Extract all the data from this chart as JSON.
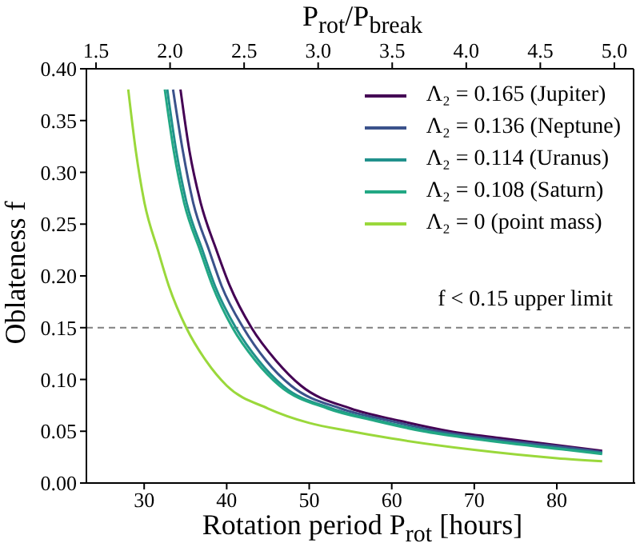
{
  "chart_data": {
    "type": "line",
    "xlabel": "Rotation period P$_{rot}$ [hours]",
    "ylabel": "Oblateness f",
    "x2label": "P$_{rot}$/P$_{break}$",
    "xlim": [
      23,
      89.5
    ],
    "xticks": [
      30,
      40,
      50,
      60,
      70,
      80
    ],
    "x2lim": [
      1.435,
      5.13
    ],
    "x2ticks": [
      1.5,
      {
        "value": 2,
        "label": "2.0"
      },
      2.5,
      {
        "value": 3,
        "label": "3.0"
      },
      3.5,
      {
        "value": 4,
        "label": "4.0"
      },
      4.5,
      {
        "value": 5,
        "label": "5.0"
      }
    ],
    "ylim": [
      0,
      0.4
    ],
    "yticks": [
      {
        "value": 0,
        "label": "0.00"
      },
      0.05,
      {
        "value": 0.1,
        "label": "0.10"
      },
      0.15,
      {
        "value": 0.2,
        "label": "0.20"
      },
      0.25,
      {
        "value": 0.3,
        "label": "0.30"
      },
      0.35,
      {
        "value": 0.4,
        "label": "0.40"
      }
    ],
    "legend": "top right",
    "marker": "none",
    "line_style": "solid",
    "ref_lines": [
      {
        "axis": "y",
        "value": 0.15,
        "label": "f < 0.15 upper limit",
        "color": "#808080",
        "line_style": "dashed"
      }
    ],
    "series": [
      {
        "name": "Λ₂ = 0.165 (Jupiter)",
        "color": "#440154",
        "x": [
          34.4,
          35.5,
          36.8,
          38.8,
          40.4,
          43,
          46,
          49,
          55,
          61,
          67,
          73.5,
          85.5
        ],
        "values": [
          0.38,
          0.32,
          0.272,
          0.224,
          0.19,
          0.15,
          0.118,
          0.094,
          0.072,
          0.06,
          0.05,
          0.043,
          0.031
        ]
      },
      {
        "name": "Λ₂ = 0.136 (Neptune)",
        "color": "#3b528b",
        "x": [
          33.5,
          34.7,
          35.9,
          37.9,
          39.4,
          42,
          44.8,
          47.8,
          53.8,
          59.8,
          65.7,
          71.7,
          83.7,
          85.5
        ],
        "values": [
          0.38,
          0.32,
          0.272,
          0.224,
          0.19,
          0.15,
          0.118,
          0.094,
          0.072,
          0.06,
          0.05,
          0.043,
          0.032,
          0.03
        ]
      },
      {
        "name": "Λ₂ = 0.114 (Uranus)",
        "color": "#21918c",
        "x": [
          32.8,
          33.9,
          35.1,
          37.1,
          38.6,
          41.1,
          43.9,
          46.8,
          52.7,
          58.5,
          64.4,
          70.2,
          81.9,
          85.5
        ],
        "values": [
          0.38,
          0.32,
          0.272,
          0.224,
          0.19,
          0.15,
          0.118,
          0.094,
          0.072,
          0.06,
          0.05,
          0.043,
          0.032,
          0.029
        ]
      },
      {
        "name": "Λ₂ = 0.108 (Saturn)",
        "color": "#22a884",
        "x": [
          32.5,
          33.6,
          34.8,
          36.8,
          38.3,
          40.7,
          43.5,
          46.4,
          52.2,
          58,
          63.8,
          69.6,
          81.2,
          85.5
        ],
        "values": [
          0.38,
          0.32,
          0.272,
          0.224,
          0.19,
          0.15,
          0.118,
          0.094,
          0.072,
          0.06,
          0.05,
          0.043,
          0.032,
          0.028
        ]
      },
      {
        "name": "Λ₂ = 0 (point mass)",
        "color": "#9ad83b",
        "x": [
          28.07,
          29,
          30,
          31.7,
          33,
          35.1,
          37.5,
          40,
          45,
          50,
          55,
          60,
          70,
          80,
          85.5
        ],
        "values": [
          0.38,
          0.32,
          0.272,
          0.224,
          0.19,
          0.15,
          0.118,
          0.094,
          0.072,
          0.058,
          0.05,
          0.043,
          0.032,
          0.024,
          0.021
        ]
      }
    ]
  }
}
